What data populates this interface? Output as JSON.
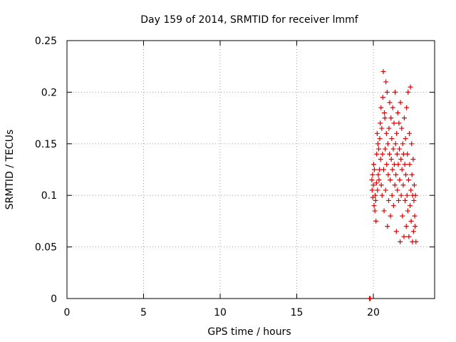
{
  "chart_data": {
    "type": "scatter",
    "title": "Day 159 of 2014, SRMTID for receiver lmmf",
    "xlabel": "GPS time / hours",
    "ylabel": "SRMTID / TECUs",
    "xlim": [
      0,
      24
    ],
    "ylim": [
      0,
      0.25
    ],
    "xticks": [
      0,
      5,
      10,
      15,
      20
    ],
    "xtick_labels": [
      "0",
      "5",
      "10",
      "15",
      "20"
    ],
    "yticks": [
      0,
      0.05,
      0.1,
      0.15,
      0.2,
      0.25
    ],
    "ytick_labels": [
      "0",
      "0.05",
      "0.1",
      "0.15",
      "0.2",
      "0.25"
    ],
    "grid": true,
    "marker": "+",
    "series": [
      {
        "name": "SRMTID",
        "color": "#e00000",
        "points": [
          [
            19.75,
            0.0
          ],
          [
            19.78,
            0.0
          ],
          [
            19.8,
            0.0
          ],
          [
            19.9,
            0.115
          ],
          [
            19.92,
            0.105
          ],
          [
            19.95,
            0.12
          ],
          [
            19.97,
            0.098
          ],
          [
            20.0,
            0.11
          ],
          [
            20.02,
            0.13
          ],
          [
            20.05,
            0.09
          ],
          [
            20.07,
            0.125
          ],
          [
            20.1,
            0.085
          ],
          [
            20.12,
            0.1
          ],
          [
            20.15,
            0.095
          ],
          [
            20.17,
            0.075
          ],
          [
            20.2,
            0.112
          ],
          [
            20.22,
            0.14
          ],
          [
            20.25,
            0.16
          ],
          [
            20.27,
            0.105
          ],
          [
            20.3,
            0.15
          ],
          [
            20.32,
            0.12
          ],
          [
            20.35,
            0.145
          ],
          [
            20.37,
            0.115
          ],
          [
            20.4,
            0.125
          ],
          [
            20.42,
            0.155
          ],
          [
            20.45,
            0.17
          ],
          [
            20.47,
            0.135
          ],
          [
            20.5,
            0.185
          ],
          [
            20.52,
            0.11
          ],
          [
            20.55,
            0.165
          ],
          [
            20.57,
            0.1
          ],
          [
            20.6,
            0.14
          ],
          [
            20.62,
            0.195
          ],
          [
            20.65,
            0.22
          ],
          [
            20.67,
            0.125
          ],
          [
            20.7,
            0.085
          ],
          [
            20.72,
            0.18
          ],
          [
            20.75,
            0.175
          ],
          [
            20.77,
            0.145
          ],
          [
            20.8,
            0.105
          ],
          [
            20.82,
            0.21
          ],
          [
            20.85,
            0.16
          ],
          [
            20.87,
            0.13
          ],
          [
            20.9,
            0.2
          ],
          [
            20.92,
            0.07
          ],
          [
            20.95,
            0.15
          ],
          [
            20.97,
            0.12
          ],
          [
            21.0,
            0.095
          ],
          [
            21.02,
            0.165
          ],
          [
            21.05,
            0.14
          ],
          [
            21.07,
            0.19
          ],
          [
            21.1,
            0.115
          ],
          [
            21.12,
            0.08
          ],
          [
            21.15,
            0.175
          ],
          [
            21.17,
            0.135
          ],
          [
            21.2,
            0.155
          ],
          [
            21.22,
            0.1
          ],
          [
            21.25,
            0.125
          ],
          [
            21.27,
            0.185
          ],
          [
            21.3,
            0.145
          ],
          [
            21.32,
            0.09
          ],
          [
            21.35,
            0.17
          ],
          [
            21.37,
            0.13
          ],
          [
            21.4,
            0.11
          ],
          [
            21.42,
            0.2
          ],
          [
            21.45,
            0.15
          ],
          [
            21.47,
            0.12
          ],
          [
            21.5,
            0.065
          ],
          [
            21.52,
            0.16
          ],
          [
            21.55,
            0.14
          ],
          [
            21.57,
            0.105
          ],
          [
            21.6,
            0.18
          ],
          [
            21.62,
            0.13
          ],
          [
            21.65,
            0.095
          ],
          [
            21.67,
            0.17
          ],
          [
            21.7,
            0.145
          ],
          [
            21.72,
            0.115
          ],
          [
            21.75,
            0.055
          ],
          [
            21.77,
            0.19
          ],
          [
            21.8,
            0.135
          ],
          [
            21.82,
            0.1
          ],
          [
            21.85,
            0.165
          ],
          [
            21.87,
            0.125
          ],
          [
            21.9,
            0.08
          ],
          [
            21.92,
            0.15
          ],
          [
            21.95,
            0.11
          ],
          [
            21.97,
            0.14
          ],
          [
            22.0,
            0.06
          ],
          [
            22.02,
            0.175
          ],
          [
            22.05,
            0.13
          ],
          [
            22.07,
            0.095
          ],
          [
            22.1,
            0.155
          ],
          [
            22.12,
            0.12
          ],
          [
            22.15,
            0.07
          ],
          [
            22.17,
            0.185
          ],
          [
            22.2,
            0.1
          ],
          [
            22.22,
            0.14
          ],
          [
            22.25,
            0.085
          ],
          [
            22.27,
            0.2
          ],
          [
            22.3,
            0.115
          ],
          [
            22.32,
            0.06
          ],
          [
            22.35,
            0.16
          ],
          [
            22.37,
            0.13
          ],
          [
            22.4,
            0.09
          ],
          [
            22.42,
            0.205
          ],
          [
            22.45,
            0.105
          ],
          [
            22.47,
            0.075
          ],
          [
            22.5,
            0.15
          ],
          [
            22.52,
            0.12
          ],
          [
            22.55,
            0.055
          ],
          [
            22.57,
            0.1
          ],
          [
            22.6,
            0.135
          ],
          [
            22.62,
            0.065
          ],
          [
            22.65,
            0.095
          ],
          [
            22.67,
            0.11
          ],
          [
            22.7,
            0.08
          ],
          [
            22.72,
            0.07
          ],
          [
            22.75,
            0.1
          ],
          [
            22.78,
            0.055
          ]
        ]
      }
    ]
  }
}
